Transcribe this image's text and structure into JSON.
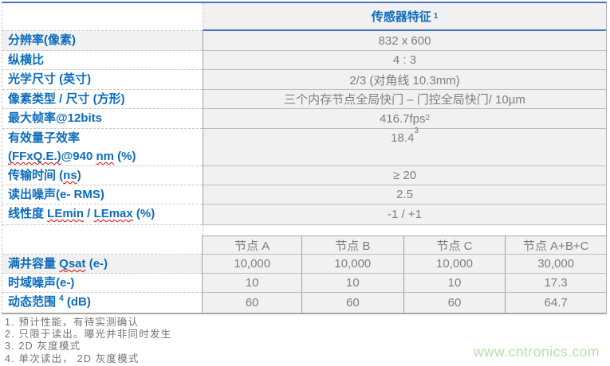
{
  "colors": {
    "accent_blue": "#0d6cbe",
    "border_blue": "#4472c4",
    "value_gray": "#7f7f7f",
    "cell_bg": "#f1f1f1",
    "squiggle_red": "#e60000",
    "watermark_green": "#b7e0a8"
  },
  "header": {
    "title": "传感器特征",
    "footnote_ref": "1"
  },
  "main_rows": [
    {
      "label": "分辨率(像素)",
      "value": "832 x 600"
    },
    {
      "label": "纵横比",
      "value": "4 : 3"
    },
    {
      "label": "光学尺寸 (英寸)",
      "value": "2/3 (对角线 10.3mm)"
    },
    {
      "label": "像素类型 / 尺寸 (方形)",
      "value": "三个内存节点全局快门 – 门控全局快门/ 10µm"
    },
    {
      "label": "最大帧率@12bits",
      "value": "416.7fps",
      "value_sup": "2"
    },
    {
      "label_line1": "有效量子效率",
      "label_sq1": "(FFxQ.E.)",
      "label_mid": "@940 ",
      "label_sq2": "nm",
      "label_end": " (%)",
      "value": "18.4",
      "value_sup": "3"
    },
    {
      "label_pre": "传输时间 (",
      "label_sq": "ns",
      "label_post": ")",
      "value": "≥ 20"
    },
    {
      "label": "读出噪声(e- RMS)",
      "value": "2.5"
    },
    {
      "label_pre": "线性度 ",
      "label_sq1": "LEmin",
      "label_mid": " / ",
      "label_sq2": "LEmax",
      "label_post": " (%)",
      "value": "-1 / +1"
    }
  ],
  "subtable": {
    "col_headers": [
      "节点 A",
      "节点 B",
      "节点 C",
      "节点 A+B+C"
    ],
    "rows": [
      {
        "label_pre": "满井容量 ",
        "label_sq": "Qsat",
        "label_post": " (e-)",
        "values": [
          "10,000",
          "10,000",
          "10,000",
          "30,000"
        ]
      },
      {
        "label": "时域噪声(e-)",
        "values": [
          "10",
          "10",
          "10",
          "17.3"
        ]
      },
      {
        "label_pre": "动态范围 ",
        "footnote_ref": "4",
        "label_post": " (dB)",
        "values": [
          "60",
          "60",
          "60",
          "64.7"
        ]
      }
    ]
  },
  "footnotes": [
    "1. 预计性能，有待实测确认",
    "2. 只限于读出。曝光并非同时发生",
    "3. 2D 灰度模式",
    "4. 单次读出， 2D 灰度模式"
  ],
  "watermark": "www.cntronics.com"
}
